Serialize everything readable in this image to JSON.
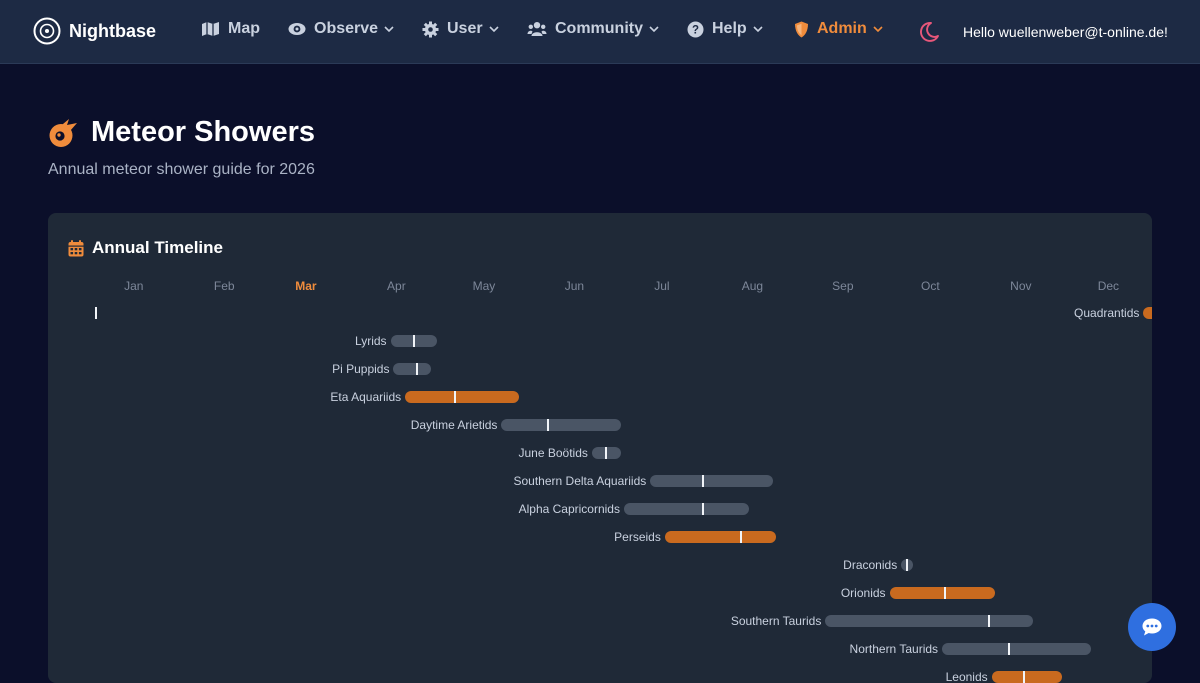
{
  "nav": {
    "brand": "Nightbase",
    "items": [
      {
        "label": "Map",
        "icon": "map-icon",
        "dropdown": false
      },
      {
        "label": "Observe",
        "icon": "eye-icon",
        "dropdown": true
      },
      {
        "label": "User",
        "icon": "gear-icon",
        "dropdown": true
      },
      {
        "label": "Community",
        "icon": "users-icon",
        "dropdown": true
      },
      {
        "label": "Help",
        "icon": "question-icon",
        "dropdown": true
      },
      {
        "label": "Admin",
        "icon": "shield-icon",
        "dropdown": true
      }
    ],
    "greeting": "Hello wuellenweber@t-online.de!"
  },
  "page": {
    "title": "Meteor Showers",
    "subtitle": "Annual meteor shower guide for 2026"
  },
  "timeline": {
    "title": "Annual Timeline",
    "months": [
      "Jan",
      "Feb",
      "Mar",
      "Apr",
      "May",
      "Jun",
      "Jul",
      "Aug",
      "Sep",
      "Oct",
      "Nov",
      "Dec"
    ],
    "current_month_index": 2,
    "showers": [
      {
        "name": "Quadrantids",
        "start": "Dec 28",
        "end": "Jan 12",
        "peak": "Jan 3",
        "major": true
      },
      {
        "name": "Lyrids",
        "start": "Apr 14",
        "end": "Apr 30",
        "peak": "Apr 22",
        "major": false
      },
      {
        "name": "Pi Puppids",
        "start": "Apr 15",
        "end": "Apr 28",
        "peak": "Apr 23",
        "major": false
      },
      {
        "name": "Eta Aquariids",
        "start": "Apr 19",
        "end": "May 28",
        "peak": "May 6",
        "major": true
      },
      {
        "name": "Daytime Arietids",
        "start": "May 22",
        "end": "Jul 2",
        "peak": "Jun 7",
        "major": false
      },
      {
        "name": "June Boötids",
        "start": "Jun 22",
        "end": "Jul 2",
        "peak": "Jun 27",
        "major": false
      },
      {
        "name": "Southern Delta Aquariids",
        "start": "Jul 12",
        "end": "Aug 23",
        "peak": "Jul 30",
        "major": false
      },
      {
        "name": "Alpha Capricornids",
        "start": "Jul 3",
        "end": "Aug 15",
        "peak": "Jul 30",
        "major": false
      },
      {
        "name": "Perseids",
        "start": "Jul 17",
        "end": "Aug 24",
        "peak": "Aug 12",
        "major": true
      },
      {
        "name": "Draconids",
        "start": "Oct 6",
        "end": "Oct 10",
        "peak": "Oct 8",
        "major": false
      },
      {
        "name": "Orionids",
        "start": "Oct 2",
        "end": "Nov 7",
        "peak": "Oct 21",
        "major": true
      },
      {
        "name": "Southern Taurids",
        "start": "Sep 10",
        "end": "Nov 20",
        "peak": "Nov 5",
        "major": false
      },
      {
        "name": "Northern Taurids",
        "start": "Oct 20",
        "end": "Dec 10",
        "peak": "Nov 12",
        "major": false
      },
      {
        "name": "Leonids",
        "start": "Nov 6",
        "end": "Nov 30",
        "peak": "Nov 17",
        "major": true
      }
    ]
  },
  "chat": {
    "icon": "chat-icon"
  }
}
